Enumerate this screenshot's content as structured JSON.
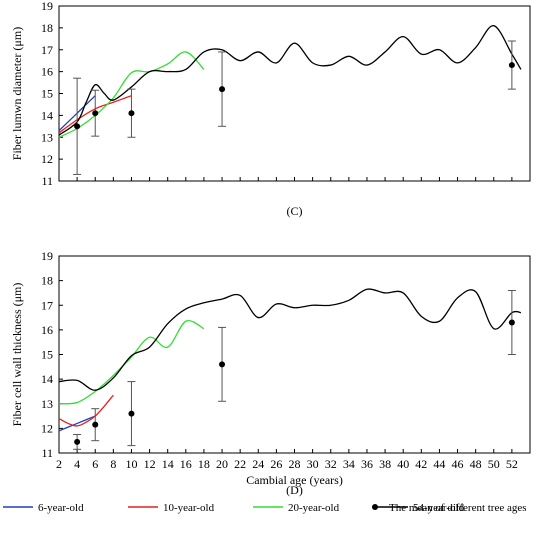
{
  "chart_data": [
    {
      "panel": "(C)",
      "type": "line",
      "ylabel": "Fiber lumwn diameter (μm)",
      "xlabel": "",
      "xlim": [
        2,
        54
      ],
      "ylim": [
        11,
        19
      ],
      "yticks": [
        11,
        12,
        13,
        14,
        15,
        16,
        17,
        18,
        19
      ],
      "series": [
        {
          "name": "6-year-old",
          "color": "#1f3fbf",
          "x": [
            2,
            3,
            4,
            5,
            6
          ],
          "y": [
            13.3,
            13.7,
            14.1,
            14.5,
            14.9
          ]
        },
        {
          "name": "10-year-old",
          "color": "#e8201c",
          "x": [
            2,
            4,
            6,
            8,
            10
          ],
          "y": [
            13.2,
            13.8,
            14.3,
            14.6,
            14.9
          ]
        },
        {
          "name": "20-year-old",
          "color": "#33dd33",
          "x": [
            2,
            4,
            6,
            8,
            10,
            12,
            14,
            16,
            18
          ],
          "y": [
            13.0,
            13.4,
            14.0,
            14.8,
            15.95,
            16.0,
            16.35,
            16.9,
            16.1
          ]
        },
        {
          "name": "54-year-old",
          "color": "#000000",
          "x": [
            2,
            4,
            5,
            6,
            7,
            8,
            10,
            12,
            14,
            16,
            18,
            20,
            22,
            24,
            26,
            28,
            30,
            32,
            34,
            36,
            38,
            40,
            42,
            44,
            46,
            48,
            50,
            52,
            53
          ],
          "y": [
            13.1,
            13.7,
            14.6,
            15.4,
            15.0,
            14.7,
            15.3,
            16.0,
            16.0,
            16.1,
            16.9,
            17.0,
            16.5,
            16.9,
            16.4,
            17.3,
            16.4,
            16.3,
            16.7,
            16.3,
            16.9,
            17.6,
            16.8,
            17.0,
            16.4,
            17.1,
            18.1,
            16.8,
            16.1
          ]
        }
      ],
      "mean": {
        "name": "The mean of different tree ages",
        "x": [
          4,
          6,
          10,
          20,
          52
        ],
        "y": [
          13.5,
          14.1,
          14.1,
          15.2,
          16.3
        ],
        "err": [
          2.2,
          1.05,
          1.1,
          1.7,
          1.1
        ]
      }
    },
    {
      "panel": "(D)",
      "type": "line",
      "ylabel": "Fiber cell wall thickness (μm)",
      "xlabel": "Cambial age (years)",
      "xlim": [
        2,
        54
      ],
      "ylim": [
        11,
        19
      ],
      "xticks": [
        2,
        4,
        6,
        8,
        10,
        12,
        14,
        16,
        18,
        20,
        22,
        24,
        26,
        28,
        30,
        32,
        34,
        36,
        38,
        40,
        42,
        44,
        46,
        48,
        50,
        52
      ],
      "yticks": [
        11,
        12,
        13,
        14,
        15,
        16,
        17,
        18,
        19
      ],
      "series": [
        {
          "name": "6-year-old",
          "color": "#1f3fbf",
          "x": [
            2,
            3,
            4,
            5,
            6
          ],
          "y": [
            11.9,
            12.05,
            12.2,
            12.35,
            12.5
          ]
        },
        {
          "name": "10-year-old",
          "color": "#e8201c",
          "x": [
            2,
            3,
            4,
            5,
            6,
            7,
            8
          ],
          "y": [
            12.4,
            12.2,
            12.1,
            12.25,
            12.5,
            12.9,
            13.35
          ]
        },
        {
          "name": "20-year-old",
          "color": "#33dd33",
          "x": [
            2,
            4,
            6,
            8,
            10,
            12,
            14,
            16,
            18
          ],
          "y": [
            13.0,
            13.05,
            13.5,
            14.15,
            14.9,
            15.7,
            15.3,
            16.35,
            16.05
          ]
        },
        {
          "name": "54-year-old",
          "color": "#000000",
          "x": [
            2,
            4,
            6,
            8,
            10,
            12,
            14,
            16,
            18,
            20,
            22,
            24,
            26,
            28,
            30,
            32,
            34,
            36,
            38,
            40,
            42,
            44,
            46,
            48,
            50,
            52,
            53
          ],
          "y": [
            13.9,
            13.95,
            13.55,
            14.05,
            14.95,
            15.3,
            16.25,
            16.85,
            17.1,
            17.25,
            17.4,
            16.5,
            17.05,
            16.9,
            17.0,
            17.0,
            17.2,
            17.65,
            17.5,
            17.5,
            16.55,
            16.35,
            17.3,
            17.55,
            16.05,
            16.7,
            16.7
          ]
        }
      ],
      "mean": {
        "name": "The mean of different tree ages",
        "x": [
          4,
          6,
          10,
          20,
          52
        ],
        "y": [
          11.45,
          12.15,
          12.6,
          14.6,
          16.3
        ],
        "err": [
          0.3,
          0.65,
          1.3,
          1.5,
          1.3
        ]
      }
    }
  ],
  "legend": [
    {
      "label": "6-year-old",
      "kind": "line",
      "color": "#1f3fbf"
    },
    {
      "label": "10-year-old",
      "kind": "line",
      "color": "#e8201c"
    },
    {
      "label": "20-year-old",
      "kind": "line",
      "color": "#33dd33"
    },
    {
      "label": "54-year-old",
      "kind": "line",
      "color": "#000000"
    },
    {
      "label": "The mean of different tree ages",
      "kind": "marker",
      "color": "#000000"
    }
  ]
}
